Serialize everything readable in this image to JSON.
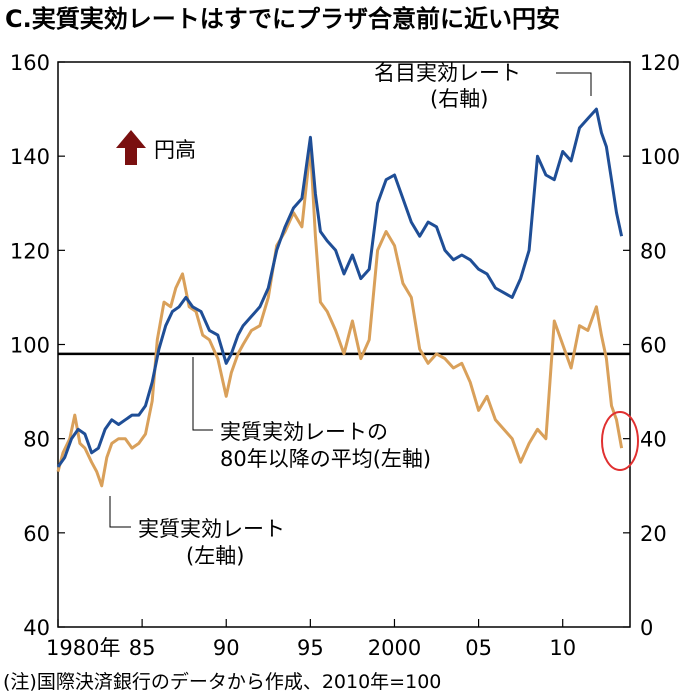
{
  "chart_data": {
    "type": "line",
    "title": "C.実質実効レートはすでにプラザ合意前に近い円安",
    "footnote": "(注)国際決済銀行のデータから作成、2010年=100",
    "up_label": "円高",
    "x_ticks": [
      "1980年",
      "85",
      "90",
      "95",
      "2000",
      "05",
      "10"
    ],
    "x_tick_years": [
      1980,
      1985,
      1990,
      1995,
      2000,
      2005,
      2010
    ],
    "xlim": [
      1980,
      2014
    ],
    "y_left": {
      "ylim": [
        40,
        160
      ],
      "ticks": [
        "40",
        "60",
        "80",
        "100",
        "120",
        "140",
        "160"
      ]
    },
    "y_right": {
      "ylim": [
        0,
        120
      ],
      "ticks": [
        "0",
        "20",
        "40",
        "60",
        "80",
        "100",
        "120"
      ]
    },
    "colors": {
      "nominal": "#1f4e96",
      "real": "#d9a05a",
      "mean": "#000000",
      "circle": "#e03030",
      "arrow": "#7a1010"
    },
    "annotations": {
      "nominal_name": "名目実効レート",
      "nominal_axis": "(右軸)",
      "mean_name": "実質実効レートの",
      "mean_desc": "80年以降の平均(左軸)",
      "real_name": "実質実効レート",
      "real_axis": "(左軸)"
    },
    "series": [
      {
        "key": "real",
        "axis": "left",
        "x": [
          1980.0,
          1980.3,
          1980.7,
          1981.0,
          1981.3,
          1981.6,
          1982.0,
          1982.3,
          1982.6,
          1982.9,
          1983.2,
          1983.6,
          1984.0,
          1984.4,
          1984.8,
          1985.2,
          1985.6,
          1985.9,
          1986.3,
          1986.7,
          1987.0,
          1987.4,
          1987.8,
          1988.2,
          1988.6,
          1989.0,
          1989.5,
          1990.0,
          1990.3,
          1990.7,
          1991.0,
          1991.5,
          1992.0,
          1992.5,
          1993.0,
          1993.5,
          1994.0,
          1994.5,
          1995.0,
          1995.3,
          1995.6,
          1996.0,
          1996.5,
          1997.0,
          1997.5,
          1998.0,
          1998.5,
          1999.0,
          1999.5,
          2000.0,
          2000.5,
          2001.0,
          2001.5,
          2002.0,
          2002.5,
          2003.0,
          2003.5,
          2004.0,
          2004.5,
          2005.0,
          2005.5,
          2006.0,
          2006.5,
          2007.0,
          2007.5,
          2008.0,
          2008.5,
          2009.0,
          2009.5,
          2010.0,
          2010.5,
          2011.0,
          2011.5,
          2012.0,
          2012.3,
          2012.6,
          2012.9,
          2013.2,
          2013.5
        ],
        "y": [
          73,
          77,
          80,
          85,
          79,
          78,
          75,
          73,
          70,
          76,
          79,
          80,
          80,
          78,
          79,
          81,
          88,
          101,
          109,
          108,
          112,
          115,
          108,
          107,
          102,
          101,
          97,
          89,
          94,
          98,
          100,
          103,
          104,
          110,
          121,
          124,
          128,
          125,
          142,
          123,
          109,
          107,
          103,
          98,
          105,
          97,
          101,
          120,
          124,
          121,
          113,
          110,
          99,
          96,
          98,
          97,
          95,
          96,
          92,
          86,
          89,
          84,
          82,
          80,
          75,
          79,
          82,
          80,
          105,
          100,
          95,
          104,
          103,
          108,
          102,
          97,
          87,
          84,
          78
        ]
      },
      {
        "key": "nominal",
        "axis": "right",
        "x": [
          1980.0,
          1980.4,
          1980.8,
          1981.2,
          1981.6,
          1982.0,
          1982.4,
          1982.8,
          1983.2,
          1983.6,
          1984.0,
          1984.4,
          1984.8,
          1985.2,
          1985.6,
          1986.0,
          1986.4,
          1986.8,
          1987.2,
          1987.6,
          1988.0,
          1988.5,
          1989.0,
          1989.5,
          1990.0,
          1990.3,
          1990.7,
          1991.0,
          1991.5,
          1992.0,
          1992.5,
          1993.0,
          1993.5,
          1994.0,
          1994.5,
          1995.0,
          1995.3,
          1995.6,
          1996.0,
          1996.5,
          1997.0,
          1997.5,
          1998.0,
          1998.5,
          1999.0,
          1999.5,
          2000.0,
          2000.5,
          2001.0,
          2001.5,
          2002.0,
          2002.5,
          2003.0,
          2003.5,
          2004.0,
          2004.5,
          2005.0,
          2005.5,
          2006.0,
          2006.5,
          2007.0,
          2007.5,
          2008.0,
          2008.5,
          2009.0,
          2009.5,
          2010.0,
          2010.5,
          2011.0,
          2011.5,
          2012.0,
          2012.3,
          2012.6,
          2012.9,
          2013.2,
          2013.5
        ],
        "y": [
          34,
          36,
          40,
          42,
          41,
          37,
          38,
          42,
          44,
          43,
          44,
          45,
          45,
          47,
          52,
          59,
          64,
          67,
          68,
          70,
          68,
          67,
          63,
          62,
          56,
          58,
          62,
          64,
          66,
          68,
          72,
          80,
          85,
          89,
          91,
          104,
          92,
          84,
          82,
          80,
          75,
          79,
          74,
          76,
          90,
          95,
          96,
          91,
          86,
          83,
          86,
          85,
          80,
          78,
          79,
          78,
          76,
          75,
          72,
          71,
          70,
          74,
          80,
          100,
          96,
          95,
          101,
          99,
          106,
          108,
          110,
          105,
          102,
          95,
          88,
          83
        ]
      }
    ],
    "mean_line": {
      "axis": "left",
      "value": 98
    }
  }
}
